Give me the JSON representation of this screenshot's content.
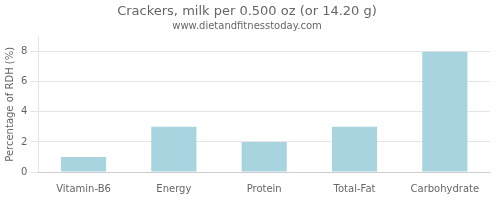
{
  "chart_data": {
    "type": "bar",
    "title": "Crackers, milk per 0.500 oz (or 14.20 g)",
    "subtitle": "www.dietandfitnesstoday.com",
    "categories": [
      "Vitamin-B6",
      "Energy",
      "Protein",
      "Total-Fat",
      "Carbohydrate"
    ],
    "values": [
      1.0,
      3.0,
      2.0,
      3.0,
      8.0
    ],
    "color": "#a8d4e0",
    "ylabel": "Percentage of RDH (%)",
    "ylim": [
      0,
      9
    ],
    "yticks": [
      0,
      2,
      4,
      6,
      8
    ],
    "grid": true
  }
}
